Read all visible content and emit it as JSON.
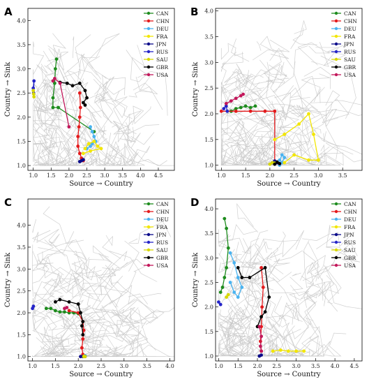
{
  "figure": {
    "country_colors": {
      "CAN": "#1e8c1e",
      "CHN": "#e41a1c",
      "DEU": "#4ab3f0",
      "FRA": "#f2e600",
      "JPN": "#0b0b8a",
      "RUS": "#2424c8",
      "SAU": "#d8d800",
      "GBR": "#000000",
      "USA": "#c2185b"
    },
    "background_color": "#c8c8c8"
  },
  "chart_data": [
    {
      "type": "line",
      "panel": "A",
      "xlabel": "Source → Country",
      "ylabel": "Country → Sink",
      "xlim": [
        0.85,
        4.95
      ],
      "ylim": [
        0.9,
        4.25
      ],
      "xticks": [
        "1.0",
        "1.5",
        "2.0",
        "2.5",
        "3.0",
        "3.5",
        "4.0",
        "4.5"
      ],
      "yticks": [
        "1.0",
        "1.5",
        "2.0",
        "2.5",
        "3.0",
        "3.5",
        "4.0"
      ],
      "legend": [
        "CAN",
        "CHN",
        "DEU",
        "FRA",
        "JPN",
        "RUS",
        "SAU",
        "GBR",
        "USA"
      ],
      "legend_position": "top-right",
      "series": [
        {
          "name": "CAN",
          "x": [
            1.65,
            1.62,
            1.6,
            1.55,
            1.55,
            1.7,
            2.7
          ],
          "y": [
            3.2,
            3.0,
            2.7,
            2.4,
            2.2,
            2.2,
            1.7
          ]
        },
        {
          "name": "CHN",
          "x": [
            2.3,
            2.32,
            2.3,
            2.28,
            2.25,
            2.25,
            2.3,
            2.35,
            2.4
          ],
          "y": [
            2.5,
            2.2,
            2.0,
            1.8,
            1.6,
            1.4,
            1.25,
            1.15,
            1.1
          ]
        },
        {
          "name": "DEU",
          "x": [
            2.6,
            2.65,
            2.7,
            2.75,
            2.65,
            2.6,
            2.5
          ],
          "y": [
            1.8,
            1.7,
            1.6,
            1.5,
            1.45,
            1.4,
            1.35
          ]
        },
        {
          "name": "FRA",
          "x": [
            2.45,
            2.55,
            2.7,
            2.8,
            2.9,
            2.6,
            2.4
          ],
          "y": [
            1.35,
            1.45,
            1.5,
            1.4,
            1.35,
            1.3,
            1.25
          ]
        },
        {
          "name": "JPN",
          "x": [
            2.35,
            2.3,
            2.4
          ],
          "y": [
            1.1,
            1.08,
            1.12
          ]
        },
        {
          "name": "RUS",
          "x": [
            1.0,
            1.02,
            1.01
          ],
          "y": [
            2.6,
            2.75,
            2.5
          ]
        },
        {
          "name": "SAU",
          "x": [
            1.0,
            1.01,
            1.02
          ],
          "y": [
            2.55,
            2.48,
            2.42
          ]
        },
        {
          "name": "GBR",
          "x": [
            1.75,
            1.95,
            2.1,
            2.3,
            2.45,
            2.5,
            2.4,
            2.45
          ],
          "y": [
            2.72,
            2.7,
            2.65,
            2.7,
            2.55,
            2.4,
            2.3,
            2.25
          ]
        },
        {
          "name": "USA",
          "x": [
            1.55,
            1.6,
            1.75,
            2.0
          ],
          "y": [
            2.75,
            2.8,
            2.7,
            1.8
          ]
        }
      ]
    },
    {
      "type": "line",
      "panel": "B",
      "xlabel": "Source → Country",
      "ylabel": "Country → Sink",
      "xlim": [
        0.88,
        3.9
      ],
      "ylim": [
        0.9,
        4.05
      ],
      "xticks": [
        "1.0",
        "1.5",
        "2.0",
        "2.5",
        "3.0",
        "3.5"
      ],
      "yticks": [
        "1.0",
        "1.5",
        "2.0",
        "2.5",
        "3.0",
        "3.5",
        "4.0"
      ],
      "legend": [
        "CAN",
        "CHN",
        "DEU",
        "FRA",
        "JPN",
        "RUS",
        "SAU",
        "GBR",
        "USA"
      ],
      "legend_position": "top-right",
      "series": [
        {
          "name": "CAN",
          "x": [
            1.2,
            1.3,
            1.4,
            1.5,
            1.6,
            1.7
          ],
          "y": [
            2.05,
            2.1,
            2.12,
            2.15,
            2.12,
            2.15
          ]
        },
        {
          "name": "CHN",
          "x": [
            1.0,
            1.3,
            1.6,
            1.9,
            2.1,
            2.1
          ],
          "y": [
            2.05,
            2.05,
            2.05,
            2.05,
            2.05,
            1.05
          ]
        },
        {
          "name": "DEU",
          "x": [
            2.2,
            2.25,
            2.3,
            2.25,
            2.2
          ],
          "y": [
            1.1,
            1.2,
            1.15,
            1.05,
            1.0
          ]
        },
        {
          "name": "FRA",
          "x": [
            2.1,
            2.3,
            2.6,
            2.8,
            2.9,
            3.0,
            2.8,
            2.5,
            2.3
          ],
          "y": [
            1.5,
            1.6,
            1.8,
            2.0,
            1.6,
            1.1,
            1.1,
            1.2,
            1.05
          ]
        },
        {
          "name": "JPN",
          "x": [
            2.05,
            2.1,
            2.15
          ],
          "y": [
            1.05,
            1.08,
            1.05
          ]
        },
        {
          "name": "RUS",
          "x": [
            1.05,
            1.1,
            1.12
          ],
          "y": [
            2.1,
            2.15,
            2.05
          ]
        },
        {
          "name": "SAU",
          "x": [
            2.0,
            2.05,
            2.1
          ],
          "y": [
            1.02,
            1.05,
            1.04
          ]
        },
        {
          "name": "GBR",
          "x": [
            2.1,
            2.15,
            2.2
          ],
          "y": [
            1.02,
            1.06,
            1.03
          ]
        },
        {
          "name": "USA",
          "x": [
            1.1,
            1.2,
            1.3,
            1.4,
            1.45
          ],
          "y": [
            2.2,
            2.25,
            2.3,
            2.35,
            2.38
          ]
        }
      ]
    },
    {
      "type": "line",
      "panel": "C",
      "xlabel": "Source → Country",
      "ylabel": "Country → Sink",
      "xlim": [
        0.9,
        4.1
      ],
      "ylim": [
        0.9,
        4.6
      ],
      "xticks": [
        "1.0",
        "1.5",
        "2.0",
        "2.5",
        "3.0",
        "3.5",
        "4.0"
      ],
      "yticks": [
        "1.0",
        "1.5",
        "2.0",
        "2.5",
        "3.0",
        "3.5",
        "4.0"
      ],
      "legend": [
        "CAN",
        "CHN",
        "DEU",
        "FRA",
        "JPN",
        "RUS",
        "SAU",
        "GBR",
        "USA"
      ],
      "legend_position": "top-right",
      "series": [
        {
          "name": "CAN",
          "x": [
            1.3,
            1.4,
            1.5,
            1.6,
            1.7,
            1.8,
            1.9,
            2.0
          ],
          "y": [
            2.1,
            2.1,
            2.05,
            2.02,
            2.02,
            2.0,
            2.0,
            1.98
          ]
        },
        {
          "name": "CHN",
          "x": [
            1.8,
            2.0,
            2.1,
            2.12,
            2.1,
            2.08,
            2.1,
            2.12
          ],
          "y": [
            2.05,
            2.0,
            1.8,
            1.6,
            1.4,
            1.2,
            1.05,
            1.0
          ]
        },
        {
          "name": "DEU",
          "x": [
            2.1,
            2.15
          ],
          "y": [
            1.0,
            1.02
          ]
        },
        {
          "name": "FRA",
          "x": [
            2.1,
            2.12
          ],
          "y": [
            1.0,
            1.01
          ]
        },
        {
          "name": "JPN",
          "x": [
            2.05,
            2.1,
            2.15
          ],
          "y": [
            1.0,
            1.0,
            1.0
          ]
        },
        {
          "name": "RUS",
          "x": [
            1.0,
            1.02
          ],
          "y": [
            2.1,
            2.15
          ]
        },
        {
          "name": "SAU",
          "x": [
            2.12,
            2.15
          ],
          "y": [
            1.0,
            1.0
          ]
        },
        {
          "name": "GBR",
          "x": [
            1.5,
            1.6,
            1.8,
            2.0,
            2.05,
            2.1,
            2.08,
            2.1
          ],
          "y": [
            2.25,
            2.3,
            2.25,
            2.2,
            2.0,
            1.8,
            1.7,
            1.5
          ]
        },
        {
          "name": "USA",
          "x": [
            1.7,
            1.75
          ],
          "y": [
            2.1,
            2.12
          ]
        }
      ]
    },
    {
      "type": "line",
      "panel": "D",
      "xlabel": "Source → Country",
      "ylabel": "Country → Sink",
      "xlim": [
        0.92,
        4.7
      ],
      "ylim": [
        0.9,
        4.2
      ],
      "xticks": [
        "1.0",
        "1.5",
        "2.0",
        "2.5",
        "3.0",
        "3.5",
        "4.0",
        "4.5"
      ],
      "yticks": [
        "1.0",
        "1.5",
        "2.0",
        "2.5",
        "3.0",
        "3.5",
        "4.0"
      ],
      "legend": [
        "CAN",
        "CHN",
        "DEU",
        "FRA",
        "JPN",
        "RUS",
        "SAU",
        "GBR",
        "USA"
      ],
      "legend_position": "top-right",
      "series": [
        {
          "name": "CAN",
          "x": [
            1.15,
            1.2,
            1.25,
            1.2,
            1.15,
            1.1,
            1.05
          ],
          "y": [
            3.8,
            3.6,
            3.2,
            2.8,
            2.6,
            2.4,
            2.3
          ]
        },
        {
          "name": "CHN",
          "x": [
            2.1,
            2.15,
            2.12,
            2.1,
            2.08,
            2.1
          ],
          "y": [
            2.8,
            2.4,
            2.0,
            1.6,
            1.3,
            1.1
          ]
        },
        {
          "name": "DEU",
          "x": [
            1.3,
            1.4,
            1.5,
            1.6,
            1.5,
            1.4,
            1.3
          ],
          "y": [
            3.1,
            2.9,
            2.6,
            2.4,
            2.2,
            2.3,
            2.5
          ]
        },
        {
          "name": "FRA",
          "x": [
            2.4,
            2.6,
            2.8,
            3.0,
            3.2
          ],
          "y": [
            1.1,
            1.12,
            1.1,
            1.1,
            1.1
          ]
        },
        {
          "name": "JPN",
          "x": [
            2.05,
            2.1
          ],
          "y": [
            1.0,
            1.02
          ]
        },
        {
          "name": "RUS",
          "x": [
            1.0,
            1.05
          ],
          "y": [
            2.1,
            2.05
          ]
        },
        {
          "name": "SAU",
          "x": [
            1.2,
            1.25
          ],
          "y": [
            2.2,
            2.25
          ]
        },
        {
          "name": "GBR",
          "x": [
            1.5,
            1.6,
            1.8,
            2.2,
            2.3,
            2.2,
            2.1,
            2.0
          ],
          "y": [
            2.8,
            2.6,
            2.6,
            2.8,
            2.2,
            1.9,
            1.8,
            1.6
          ]
        },
        {
          "name": "USA",
          "x": [
            2.05,
            2.1,
            2.08,
            2.1
          ],
          "y": [
            1.6,
            1.4,
            1.2,
            1.1
          ]
        }
      ]
    }
  ]
}
